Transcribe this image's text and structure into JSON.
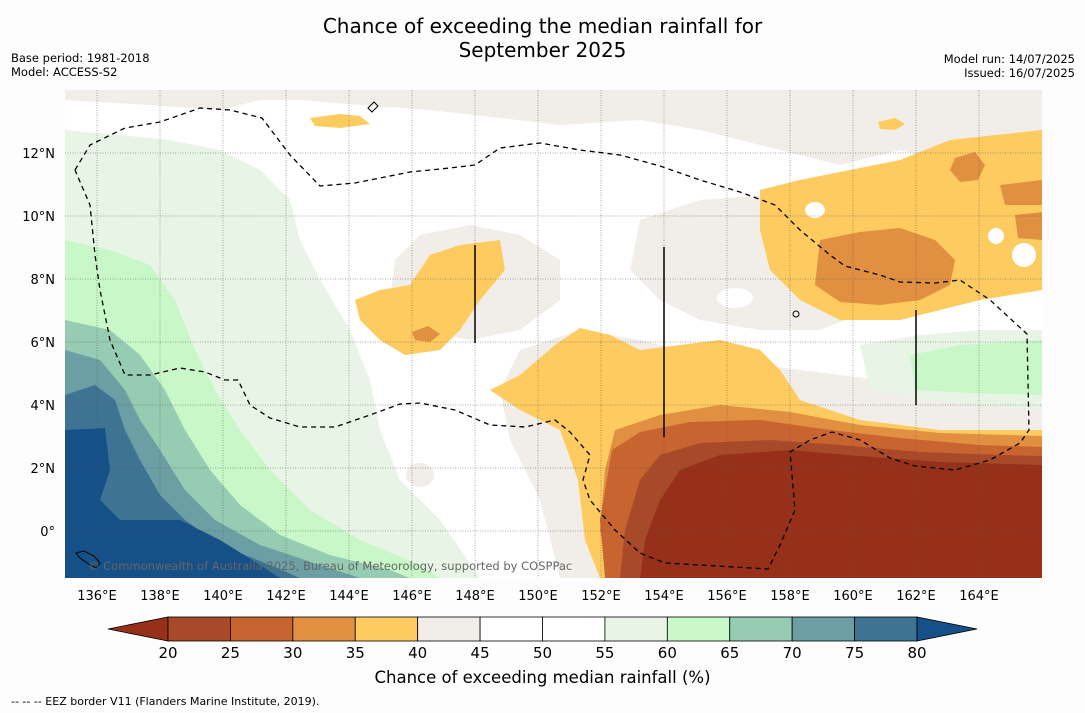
{
  "title_line1": "Chance of exceeding the median rainfall for",
  "title_line2": "September 2025",
  "meta": {
    "base_period": "Base period: 1981-2018",
    "model": "Model: ACCESS-S2",
    "model_run": "Model run: 14/07/2025",
    "issued": "Issued: 16/07/2025"
  },
  "map": {
    "lon_labels": [
      "136°E",
      "138°E",
      "140°E",
      "142°E",
      "144°E",
      "146°E",
      "148°E",
      "150°E",
      "152°E",
      "154°E",
      "156°E",
      "158°E",
      "160°E",
      "162°E",
      "164°E"
    ],
    "lat_labels": [
      "12°N",
      "10°N",
      "8°N",
      "6°N",
      "4°N",
      "2°N",
      "0°"
    ],
    "copyright": "© Commonwealth of Australia 2025, Bureau of Meteorology, supported by COSPPac"
  },
  "colorbar": {
    "ticks": [
      "20",
      "25",
      "30",
      "35",
      "40",
      "45",
      "50",
      "55",
      "60",
      "65",
      "70",
      "75",
      "80"
    ],
    "colors": [
      "#a84a2a",
      "#c86430",
      "#e09040",
      "#fecb60",
      "#f1ede8",
      "#ffffff",
      "#ffffff",
      "#e8f5e6",
      "#c8f8c8",
      "#96ccb2",
      "#6b9fa4",
      "#3e7393"
    ],
    "under_color": "#963018",
    "over_color": "#155088",
    "label": "Chance of exceeding median rainfall (%)"
  },
  "eez_note": "--  --  -- EEZ border V11 (Flanders Marine Institute, 2019)."
}
